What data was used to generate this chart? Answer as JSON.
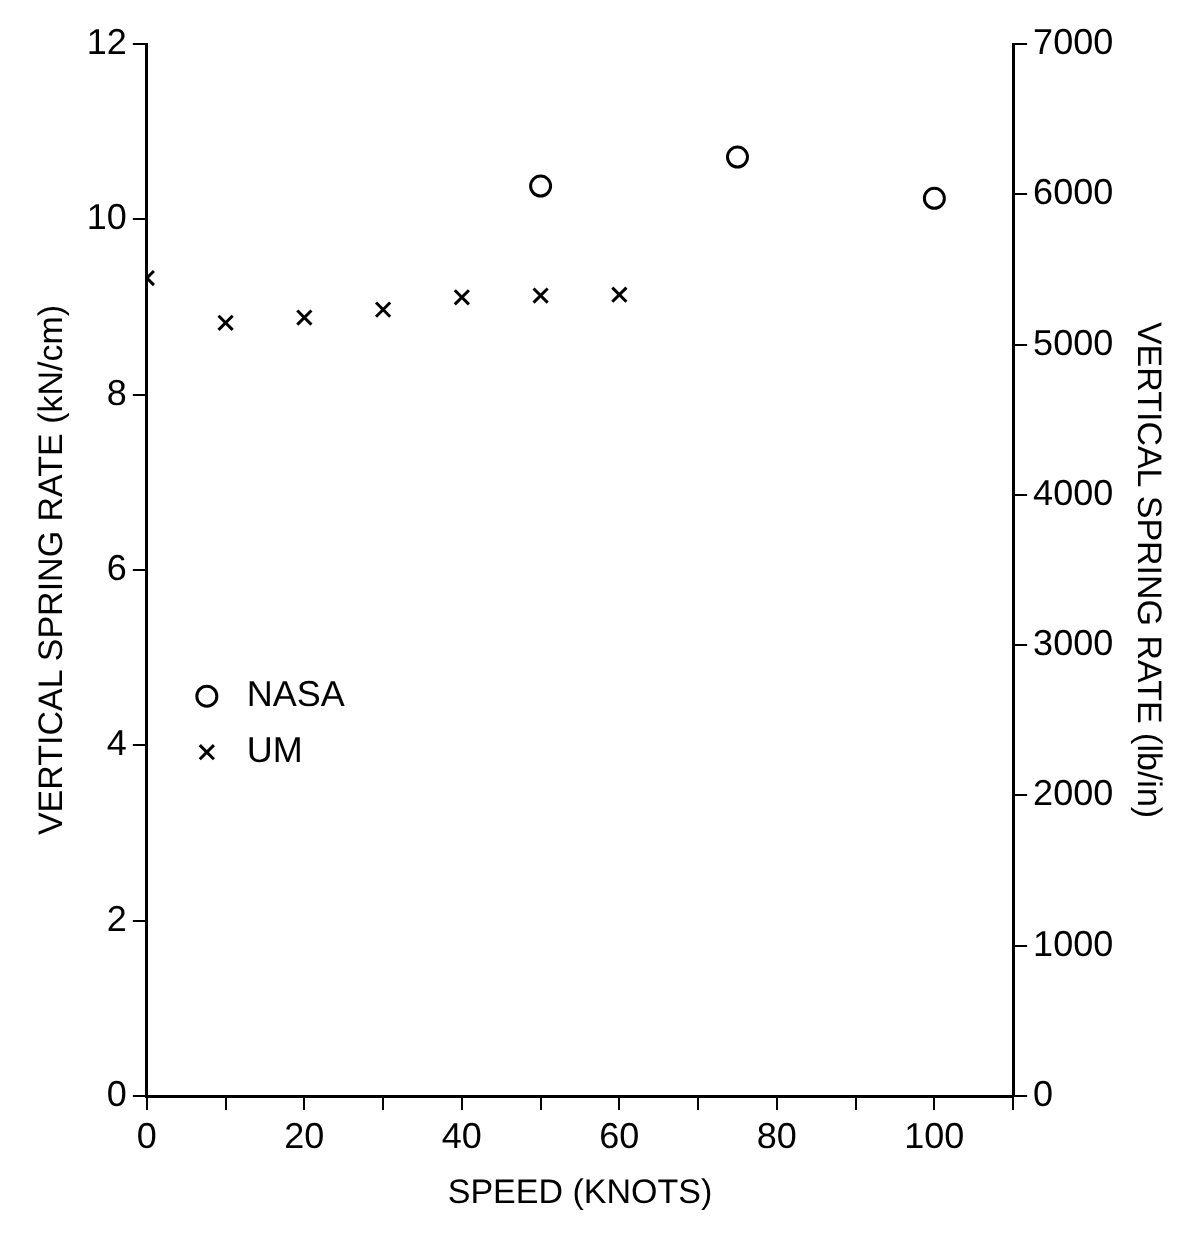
{
  "chart_data": {
    "type": "scatter",
    "xlabel": "SPEED (KNOTS)",
    "ylabel": "VERTICAL SPRING RATE (kN/cm)",
    "y2label": "VERTICAL SPRING RATE (lb/in)",
    "xlim": [
      0,
      110
    ],
    "xticks": [
      0,
      {
        "value": 10,
        "label": null
      },
      20,
      {
        "value": 30,
        "label": null
      },
      40,
      {
        "value": 50,
        "label": null
      },
      60,
      {
        "value": 70,
        "label": null
      },
      80,
      {
        "value": 90,
        "label": null
      },
      100,
      {
        "value": 110,
        "label": null
      }
    ],
    "ylim": [
      0,
      12
    ],
    "yticks": [
      0,
      2,
      4,
      6,
      8,
      10,
      12
    ],
    "y2lim": [
      0,
      7000
    ],
    "y2ticks": [
      0,
      1000,
      2000,
      3000,
      4000,
      5000,
      6000,
      7000
    ],
    "grid": false,
    "legend": "left",
    "series": [
      {
        "name": "NASA",
        "color": "#000000",
        "marker": "circle",
        "x": [
          50,
          75,
          100
        ],
        "values": [
          10.38,
          10.71,
          10.24
        ]
      },
      {
        "name": "UM",
        "color": "#000000",
        "marker": "cross",
        "x": [
          0,
          10,
          20,
          30,
          40,
          50,
          60
        ],
        "values": [
          9.33,
          8.82,
          8.88,
          8.97,
          9.11,
          9.13,
          9.14
        ]
      }
    ]
  }
}
